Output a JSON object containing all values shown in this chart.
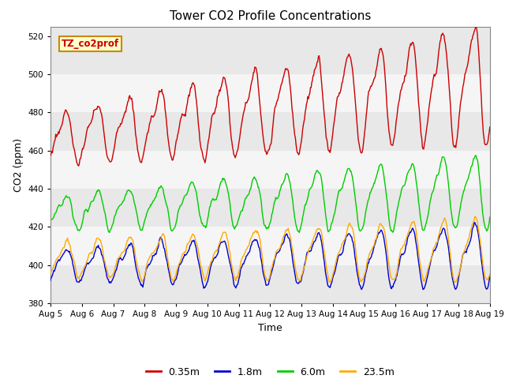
{
  "title": "Tower CO2 Profile Concentrations",
  "xlabel": "Time",
  "ylabel": "CO2 (ppm)",
  "ylim": [
    380,
    525
  ],
  "yticks": [
    380,
    400,
    420,
    440,
    460,
    480,
    500,
    520
  ],
  "date_labels": [
    "Aug 5",
    "Aug 6",
    "Aug 7",
    "Aug 8",
    "Aug 9",
    "Aug 10",
    "Aug 11",
    "Aug 12",
    "Aug 13",
    "Aug 14",
    "Aug 15",
    "Aug 16",
    "Aug 17",
    "Aug 18",
    "Aug 19"
  ],
  "colors": {
    "0.35m": "#cc0000",
    "1.8m": "#0000cc",
    "6.0m": "#00cc00",
    "23.5m": "#ffaa00"
  },
  "legend_label": "TZ_co2prof",
  "legend_bg": "#ffffcc",
  "legend_border": "#cc8800",
  "band_colors": [
    "#e8e8e8",
    "#f5f5f5"
  ],
  "figsize": [
    6.4,
    4.8
  ],
  "dpi": 100
}
